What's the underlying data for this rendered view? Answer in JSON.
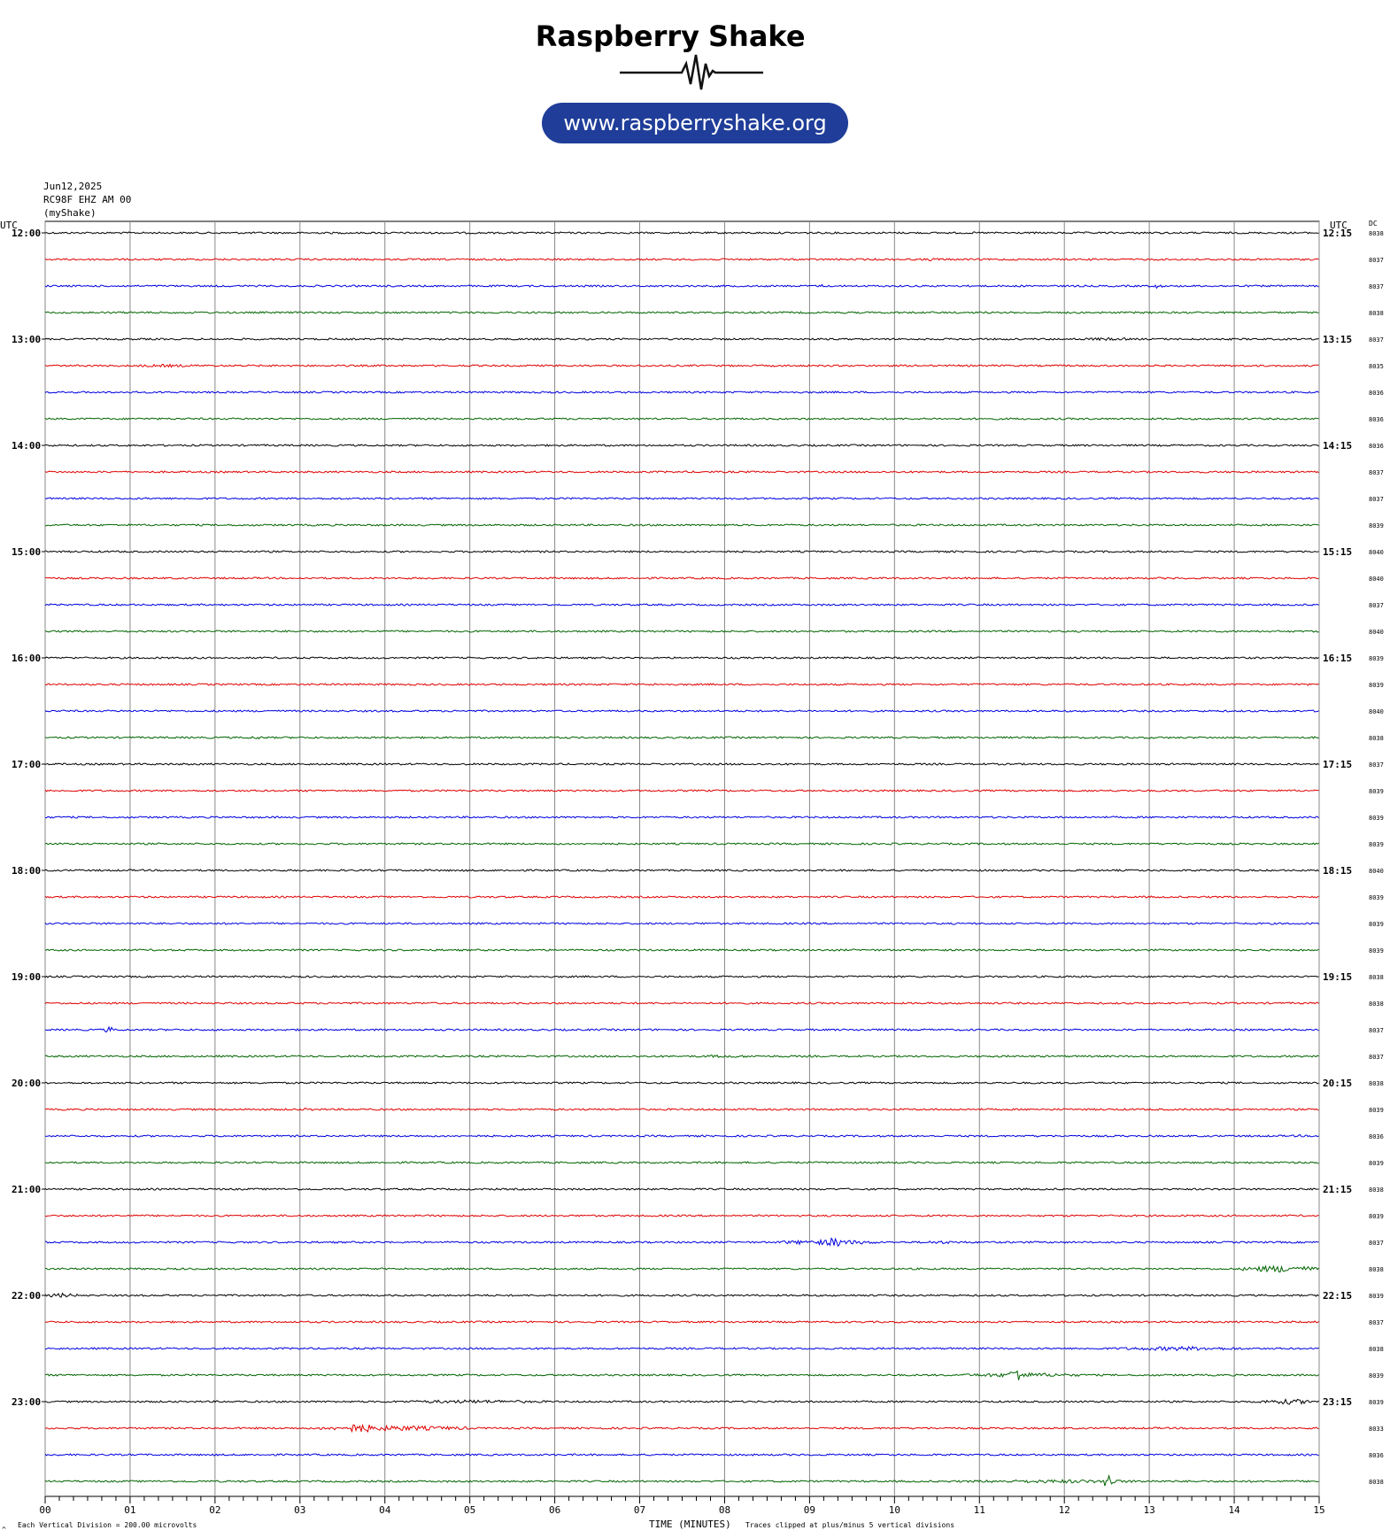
{
  "logo": {
    "word1": "Raspberry",
    "word2": "Shake",
    "url": "www.raspberryshake.org",
    "colors": {
      "word1": "#111111",
      "word2": "#7b96e8",
      "pill": "#1f3d99",
      "pill_text": "#ffffff"
    }
  },
  "header": {
    "date": "Jun12,2025",
    "station": "RC98F EHZ AM 00",
    "owner": "(myShake)"
  },
  "chart_data": {
    "type": "line",
    "title": "",
    "xlabel": "TIME (MINUTES)",
    "x_ticks": [
      "00",
      "01",
      "02",
      "03",
      "04",
      "05",
      "06",
      "07",
      "08",
      "09",
      "10",
      "11",
      "12",
      "13",
      "14",
      "15"
    ],
    "xlim": [
      0,
      15
    ],
    "left_axis_title": "UTC",
    "right_axis_title": "UTC",
    "dc_title": "DC",
    "hour_labels_left": [
      "12:00",
      "13:00",
      "14:00",
      "15:00",
      "16:00",
      "17:00",
      "18:00",
      "19:00",
      "20:00",
      "21:00",
      "22:00",
      "23:00"
    ],
    "hour_labels_right": [
      "12:15",
      "13:15",
      "14:15",
      "15:15",
      "16:15",
      "17:15",
      "18:15",
      "19:15",
      "20:15",
      "21:15",
      "22:15",
      "23:15"
    ],
    "trace_colors": [
      "#000000",
      "#e00000",
      "#0000e0",
      "#006400"
    ],
    "dc_values": [
      "8038",
      "8037",
      "8037",
      "8038",
      "8037",
      "8035",
      "8036",
      "8036",
      "8036",
      "8037",
      "8037",
      "8039",
      "8040",
      "8040",
      "8037",
      "8040",
      "8039",
      "8039",
      "8040",
      "8038",
      "8037",
      "8039",
      "8039",
      "8039",
      "8040",
      "8039",
      "8039",
      "8039",
      "8038",
      "8038",
      "8037",
      "8037",
      "8038",
      "8039",
      "8036",
      "8039",
      "8038",
      "8039",
      "8037",
      "8038",
      "8039",
      "8037",
      "8038",
      "8039",
      "8039",
      "8033",
      "8036",
      "8038"
    ],
    "events": [
      {
        "row": 0,
        "start": 12.8,
        "end": 13.1,
        "amp": 1.5
      },
      {
        "row": 1,
        "start": 10.3,
        "end": 10.6,
        "amp": 1.8
      },
      {
        "row": 2,
        "start": 9.1,
        "end": 9.2,
        "amp": 2.0
      },
      {
        "row": 2,
        "start": 13.05,
        "end": 13.15,
        "amp": 3.0
      },
      {
        "row": 4,
        "start": 11.9,
        "end": 13.0,
        "amp": 1.6
      },
      {
        "row": 5,
        "start": 0.9,
        "end": 2.0,
        "amp": 1.7
      },
      {
        "row": 19,
        "start": 2.4,
        "end": 2.6,
        "amp": 2.0
      },
      {
        "row": 30,
        "start": 0.7,
        "end": 0.8,
        "amp": 4.0
      },
      {
        "row": 31,
        "start": 7.4,
        "end": 8.6,
        "amp": 1.6
      },
      {
        "row": 33,
        "start": 3.05,
        "end": 3.15,
        "amp": 2.5
      },
      {
        "row": 34,
        "start": 14.7,
        "end": 14.8,
        "amp": 2.0
      },
      {
        "row": 38,
        "start": 8.6,
        "end": 9.8,
        "amp": 3.0
      },
      {
        "row": 38,
        "start": 10.2,
        "end": 10.9,
        "amp": 1.8
      },
      {
        "row": 38,
        "start": 9.2,
        "end": 9.4,
        "amp": 6.0
      },
      {
        "row": 39,
        "start": 14.1,
        "end": 15.0,
        "amp": 4.0
      },
      {
        "row": 40,
        "start": 0.0,
        "end": 0.4,
        "amp": 2.5
      },
      {
        "row": 42,
        "start": 12.6,
        "end": 14.1,
        "amp": 2.5
      },
      {
        "row": 43,
        "start": 10.8,
        "end": 12.2,
        "amp": 2.6
      },
      {
        "row": 43,
        "start": 11.35,
        "end": 11.55,
        "amp": 8.0
      },
      {
        "row": 44,
        "start": 4.0,
        "end": 6.0,
        "amp": 2.0
      },
      {
        "row": 44,
        "start": 14.3,
        "end": 15.0,
        "amp": 3.0
      },
      {
        "row": 45,
        "start": 3.2,
        "end": 5.0,
        "amp": 3.0
      },
      {
        "row": 45,
        "start": 3.5,
        "end": 3.9,
        "amp": 5.5
      },
      {
        "row": 47,
        "start": 10.6,
        "end": 13.3,
        "amp": 2.0
      },
      {
        "row": 47,
        "start": 12.45,
        "end": 12.6,
        "amp": 9.0
      }
    ]
  },
  "footer": {
    "scale_note": "Each Vertical Division =  200.00 microvolts",
    "clip_note": "Traces clipped at plus/minus 5 vertical divisions",
    "corner_mark": "^"
  }
}
